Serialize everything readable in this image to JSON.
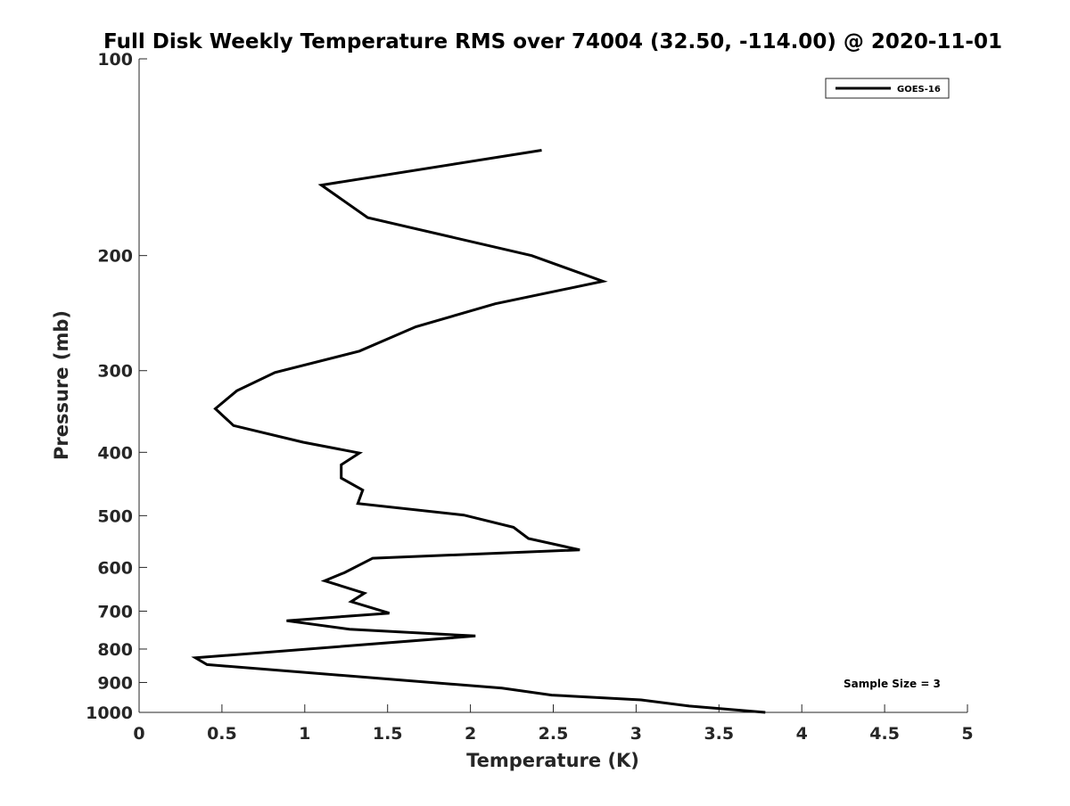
{
  "chart_data": {
    "type": "line",
    "title": "Full Disk Weekly Temperature RMS over 74004 (32.50, -114.00) @ 2020-11-01",
    "xlabel": "Temperature (K)",
    "ylabel": "Pressure (mb)",
    "xlim": [
      0,
      5
    ],
    "ylim": [
      100,
      1000
    ],
    "y_scale": "log",
    "y_reversed": true,
    "xticks": [
      0,
      0.5,
      1,
      1.5,
      2,
      2.5,
      3,
      3.5,
      4,
      4.5,
      5
    ],
    "xtick_labels": [
      "0",
      "0.5",
      "1",
      "1.5",
      "2",
      "2.5",
      "3",
      "3.5",
      "4",
      "4.5",
      "5"
    ],
    "yticks": [
      100,
      200,
      300,
      400,
      500,
      600,
      700,
      800,
      900,
      1000
    ],
    "ytick_labels": [
      "100",
      "200",
      "300",
      "400",
      "500",
      "600",
      "700",
      "800",
      "900",
      "1000"
    ],
    "grid": false,
    "legend_position": "top-right",
    "color": "#000000",
    "series": [
      {
        "name": "GOES-16",
        "points": [
          {
            "x": 2.43,
            "y": 138
          },
          {
            "x": 1.1,
            "y": 156
          },
          {
            "x": 1.38,
            "y": 175
          },
          {
            "x": 2.37,
            "y": 200
          },
          {
            "x": 2.8,
            "y": 219
          },
          {
            "x": 2.15,
            "y": 237
          },
          {
            "x": 1.67,
            "y": 257
          },
          {
            "x": 1.33,
            "y": 280
          },
          {
            "x": 0.82,
            "y": 302
          },
          {
            "x": 0.59,
            "y": 322
          },
          {
            "x": 0.46,
            "y": 343
          },
          {
            "x": 0.57,
            "y": 364
          },
          {
            "x": 0.99,
            "y": 386
          },
          {
            "x": 1.33,
            "y": 401
          },
          {
            "x": 1.22,
            "y": 418
          },
          {
            "x": 1.22,
            "y": 438
          },
          {
            "x": 1.35,
            "y": 457
          },
          {
            "x": 1.32,
            "y": 479
          },
          {
            "x": 1.96,
            "y": 499
          },
          {
            "x": 2.26,
            "y": 521
          },
          {
            "x": 2.35,
            "y": 542
          },
          {
            "x": 2.66,
            "y": 564
          },
          {
            "x": 1.41,
            "y": 581
          },
          {
            "x": 1.24,
            "y": 611
          },
          {
            "x": 1.12,
            "y": 629
          },
          {
            "x": 1.36,
            "y": 657
          },
          {
            "x": 1.28,
            "y": 677
          },
          {
            "x": 1.51,
            "y": 705
          },
          {
            "x": 0.89,
            "y": 724
          },
          {
            "x": 1.27,
            "y": 746
          },
          {
            "x": 2.03,
            "y": 764
          },
          {
            "x": 0.34,
            "y": 825
          },
          {
            "x": 0.41,
            "y": 845
          },
          {
            "x": 2.19,
            "y": 918
          },
          {
            "x": 2.49,
            "y": 941
          },
          {
            "x": 3.03,
            "y": 957
          },
          {
            "x": 3.32,
            "y": 978
          },
          {
            "x": 3.78,
            "y": 1000
          }
        ]
      }
    ],
    "legend_entries": [
      "GOES-16"
    ],
    "annotation": "Sample Size = 3"
  }
}
